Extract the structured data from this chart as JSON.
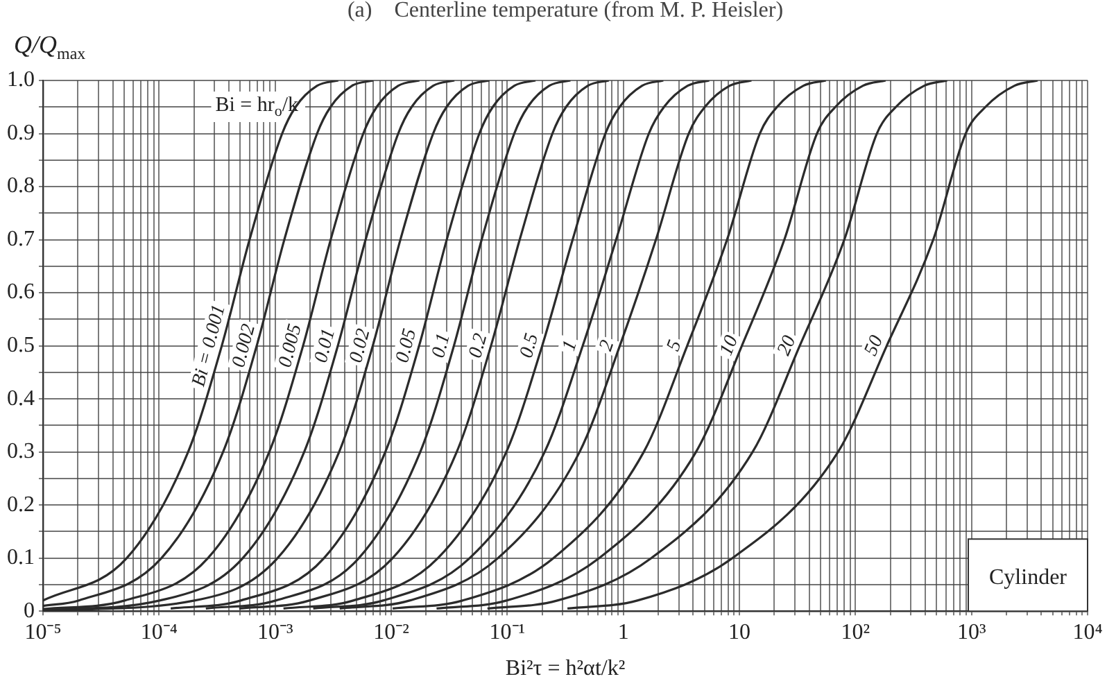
{
  "chart_data": {
    "type": "line",
    "xlabel": "Bi²τ = h²αt/k²",
    "ylabel": "Q/Q$_{max}$",
    "log": "x",
    "grid": true,
    "legend": false,
    "annotations": [
      "(a)    Centerline temperature (from M. P. Heisler)",
      "Bi = hr$_{o}$/k",
      "Cylinder"
    ],
    "xlim": [
      1e-05,
      10000
    ],
    "ylim": [
      0,
      1
    ],
    "xticks": [
      {
        "value": 1e-05,
        "label": "10⁻⁵"
      },
      {
        "value": 2e-05,
        "label": null
      },
      {
        "value": 3e-05,
        "label": null
      },
      {
        "value": 4e-05,
        "label": null
      },
      {
        "value": 5e-05,
        "label": null
      },
      {
        "value": 6e-05,
        "label": null
      },
      {
        "value": 7e-05,
        "label": null
      },
      {
        "value": 8e-05,
        "label": null
      },
      {
        "value": 9e-05,
        "label": null
      },
      {
        "value": 0.0001,
        "label": "10⁻⁴"
      },
      {
        "value": 0.0002,
        "label": null
      },
      {
        "value": 0.0003,
        "label": null
      },
      {
        "value": 0.0004,
        "label": null
      },
      {
        "value": 0.0005,
        "label": null
      },
      {
        "value": 0.0006,
        "label": null
      },
      {
        "value": 0.0007,
        "label": null
      },
      {
        "value": 0.0008,
        "label": null
      },
      {
        "value": 0.0009,
        "label": null
      },
      {
        "value": 0.001,
        "label": "10⁻³"
      },
      {
        "value": 0.002,
        "label": null
      },
      {
        "value": 0.003,
        "label": null
      },
      {
        "value": 0.004,
        "label": null
      },
      {
        "value": 0.005,
        "label": null
      },
      {
        "value": 0.006,
        "label": null
      },
      {
        "value": 0.007,
        "label": null
      },
      {
        "value": 0.008,
        "label": null
      },
      {
        "value": 0.009,
        "label": null
      },
      {
        "value": 0.01,
        "label": "10⁻²"
      },
      {
        "value": 0.02,
        "label": null
      },
      {
        "value": 0.03,
        "label": null
      },
      {
        "value": 0.04,
        "label": null
      },
      {
        "value": 0.05,
        "label": null
      },
      {
        "value": 0.06,
        "label": null
      },
      {
        "value": 0.07,
        "label": null
      },
      {
        "value": 0.08,
        "label": null
      },
      {
        "value": 0.09,
        "label": null
      },
      {
        "value": 0.1,
        "label": "10⁻¹"
      },
      {
        "value": 0.2,
        "label": null
      },
      {
        "value": 0.3,
        "label": null
      },
      {
        "value": 0.4,
        "label": null
      },
      {
        "value": 0.5,
        "label": null
      },
      {
        "value": 0.6,
        "label": null
      },
      {
        "value": 0.7,
        "label": null
      },
      {
        "value": 0.8,
        "label": null
      },
      {
        "value": 0.9,
        "label": null
      },
      {
        "value": 1,
        "label": "1"
      },
      {
        "value": 2,
        "label": null
      },
      {
        "value": 3,
        "label": null
      },
      {
        "value": 4,
        "label": null
      },
      {
        "value": 5,
        "label": null
      },
      {
        "value": 6,
        "label": null
      },
      {
        "value": 7,
        "label": null
      },
      {
        "value": 8,
        "label": null
      },
      {
        "value": 9,
        "label": null
      },
      {
        "value": 10,
        "label": "10"
      },
      {
        "value": 20,
        "label": null
      },
      {
        "value": 30,
        "label": null
      },
      {
        "value": 40,
        "label": null
      },
      {
        "value": 50,
        "label": null
      },
      {
        "value": 60,
        "label": null
      },
      {
        "value": 70,
        "label": null
      },
      {
        "value": 80,
        "label": null
      },
      {
        "value": 90,
        "label": null
      },
      {
        "value": 100,
        "label": "10²"
      },
      {
        "value": 200,
        "label": null
      },
      {
        "value": 300,
        "label": null
      },
      {
        "value": 400,
        "label": null
      },
      {
        "value": 500,
        "label": null
      },
      {
        "value": 600,
        "label": null
      },
      {
        "value": 700,
        "label": null
      },
      {
        "value": 800,
        "label": null
      },
      {
        "value": 900,
        "label": null
      },
      {
        "value": 1000,
        "label": "10³"
      },
      {
        "value": 2000,
        "label": null
      },
      {
        "value": 3000,
        "label": null
      },
      {
        "value": 4000,
        "label": null
      },
      {
        "value": 5000,
        "label": null
      },
      {
        "value": 6000,
        "label": null
      },
      {
        "value": 7000,
        "label": null
      },
      {
        "value": 8000,
        "label": null
      },
      {
        "value": 9000,
        "label": null
      },
      {
        "value": 10000,
        "label": "10⁴"
      }
    ],
    "yticks": [
      0,
      {
        "value": 0.05,
        "label": null
      },
      0.1,
      {
        "value": 0.15,
        "label": null
      },
      0.2,
      {
        "value": 0.25,
        "label": null
      },
      0.3,
      {
        "value": 0.35,
        "label": null
      },
      0.4,
      {
        "value": 0.45,
        "label": null
      },
      0.5,
      {
        "value": 0.55,
        "label": null
      },
      0.6,
      {
        "value": 0.65,
        "label": null
      },
      0.7,
      {
        "value": 0.75,
        "label": null
      },
      0.8,
      {
        "value": 0.85,
        "label": null
      },
      0.9,
      {
        "value": 0.95,
        "label": null
      },
      {
        "value": 1,
        "label": "1.0"
      }
    ],
    "series": [
      {
        "name": "Bi = 0.001",
        "color": "#2b2b2b",
        "x": [
          1e-05,
          5.27e-05,
          0.000178,
          0.000347,
          0.000602,
          0.00115,
          0.0015,
          0.0023,
          0.0035
        ],
        "values": [
          0.02,
          0.1,
          0.3,
          0.5,
          0.7,
          0.9,
          0.95,
          0.99,
          1
        ]
      },
      {
        "name": "0.002",
        "color": "#2b2b2b",
        "x": [
          1e-05,
          2.02e-05,
          0.000105,
          0.000356,
          0.000694,
          0.0012,
          0.0023,
          0.003,
          0.0046,
          0.007
        ],
        "values": [
          0.01,
          0.02,
          0.1,
          0.3,
          0.5,
          0.7,
          0.9,
          0.95,
          0.99,
          1
        ]
      },
      {
        "name": "0.005",
        "color": "#2b2b2b",
        "x": [
          1e-05,
          5.05e-05,
          0.000264,
          0.00089,
          0.00174,
          0.00301,
          0.00575,
          0.0075,
          0.0115,
          0.0175
        ],
        "values": [
          0.004,
          0.02,
          0.1,
          0.3,
          0.5,
          0.7,
          0.9,
          0.95,
          0.99,
          1
        ]
      },
      {
        "name": "0.01",
        "color": "#2b2b2b",
        "x": [
          1e-05,
          0.000101,
          0.000527,
          0.00178,
          0.00347,
          0.00602,
          0.0115,
          0.015,
          0.023,
          0.035
        ],
        "values": [
          0.002,
          0.02,
          0.1,
          0.3,
          0.5,
          0.7,
          0.9,
          0.95,
          0.99,
          1
        ]
      },
      {
        "name": "0.02",
        "color": "#2b2b2b",
        "x": [
          1e-05,
          0.000202,
          0.00105,
          0.00356,
          0.00694,
          0.012,
          0.023,
          0.03,
          0.046,
          0.07
        ],
        "values": [
          0.001,
          0.02,
          0.1,
          0.3,
          0.5,
          0.7,
          0.9,
          0.95,
          0.99,
          1
        ]
      },
      {
        "name": "0.05",
        "color": "#2b2b2b",
        "x": [
          0.000126,
          0.000505,
          0.00264,
          0.0089,
          0.0174,
          0.0301,
          0.0575,
          0.075,
          0.115,
          0.175
        ],
        "values": [
          0.005,
          0.02,
          0.1,
          0.3,
          0.5,
          0.7,
          0.9,
          0.95,
          0.99,
          1
        ]
      },
      {
        "name": "0.1",
        "color": "#2b2b2b",
        "x": [
          0.000253,
          0.00101,
          0.00527,
          0.0178,
          0.0347,
          0.0602,
          0.115,
          0.15,
          0.23,
          0.35
        ],
        "values": [
          0.005,
          0.02,
          0.1,
          0.3,
          0.5,
          0.7,
          0.9,
          0.95,
          0.99,
          1
        ]
      },
      {
        "name": "0.2",
        "color": "#2b2b2b",
        "x": [
          0.00049,
          0.00197,
          0.0103,
          0.0367,
          0.0724,
          0.128,
          0.245,
          0.321,
          0.494,
          0.75
        ],
        "values": [
          0.005,
          0.02,
          0.1,
          0.3,
          0.5,
          0.7,
          0.9,
          0.95,
          0.99,
          1
        ]
      },
      {
        "name": "0.5",
        "color": "#2b2b2b",
        "x": [
          0.00118,
          0.00471,
          0.0253,
          0.0982,
          0.2,
          0.366,
          0.701,
          0.929,
          1.45,
          2.21
        ],
        "values": [
          0.005,
          0.02,
          0.1,
          0.3,
          0.5,
          0.7,
          0.9,
          0.95,
          0.99,
          1
        ]
      },
      {
        "name": "1",
        "color": "#2b2b2b",
        "x": [
          0.00213,
          0.00851,
          0.0475,
          0.21,
          0.447,
          0.867,
          1.66,
          2.24,
          3.58,
          5.5
        ],
        "values": [
          0.005,
          0.02,
          0.1,
          0.3,
          0.5,
          0.7,
          0.9,
          0.95,
          0.99,
          1
        ]
      },
      {
        "name": "2",
        "color": "#2b2b2b",
        "x": [
          0.0036,
          0.0144,
          0.0832,
          0.42,
          0.933,
          1.91,
          3.66,
          5.04,
          8.24,
          12.7
        ],
        "values": [
          0.005,
          0.02,
          0.1,
          0.3,
          0.5,
          0.7,
          0.9,
          0.95,
          0.99,
          1
        ]
      },
      {
        "name": "5",
        "color": "#2b2b2b",
        "x": [
          0.0103,
          0.0412,
          0.25,
          1.5,
          3.55,
          7.83,
          15,
          21.1,
          35.6,
          55.6
        ],
        "values": [
          0.005,
          0.02,
          0.1,
          0.3,
          0.5,
          0.7,
          0.9,
          0.95,
          0.99,
          1
        ]
      },
      {
        "name": "10",
        "color": "#2b2b2b",
        "x": [
          0.0246,
          0.0984,
          0.619,
          4.23,
          10.5,
          24.4,
          46.6,
          67.1,
          116,
          182
        ],
        "values": [
          0.005,
          0.02,
          0.1,
          0.3,
          0.5,
          0.7,
          0.9,
          0.95,
          0.99,
          1
        ]
      },
      {
        "name": "20",
        "color": "#2b2b2b",
        "x": [
          0.0675,
          0.27,
          1.74,
          13,
          33.1,
          80.2,
          153,
          223,
          391,
          617
        ],
        "values": [
          0.005,
          0.02,
          0.1,
          0.3,
          0.5,
          0.7,
          0.9,
          0.95,
          0.99,
          1
        ]
      },
      {
        "name": "50",
        "color": "#2b2b2b",
        "x": [
          0.33,
          1.32,
          8.71,
          70.8,
          186,
          468,
          891,
          1318,
          2344,
          3715
        ],
        "values": [
          0.005,
          0.02,
          0.1,
          0.3,
          0.5,
          0.7,
          0.9,
          0.95,
          0.99,
          1
        ]
      }
    ]
  }
}
